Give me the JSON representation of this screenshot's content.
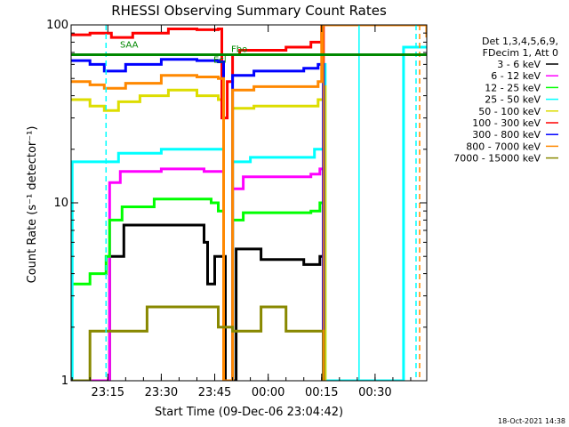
{
  "chart_data": {
    "type": "line",
    "title": "RHESSI Observing Summary Count Rates",
    "xlabel": "Start Time (09-Dec-06 23:04:42)",
    "ylabel": "Count Rate (s⁻¹ detector⁻¹)",
    "y_scale": "log",
    "ylim": [
      1,
      100
    ],
    "xlim": [
      "23:04:42",
      "00:44:30"
    ],
    "x_ticks": [
      "23:15",
      "23:30",
      "23:45",
      "00:00",
      "00:15",
      "00:30"
    ],
    "y_ticks": [
      "1",
      "10",
      "100"
    ],
    "legend": {
      "position": "right",
      "header": [
        "Det 1,3,4,5,6,9,",
        "FDecim 1, Att 0"
      ],
      "entries": [
        {
          "label": "3 - 6 keV",
          "color": "#000000"
        },
        {
          "label": "6 - 12 keV",
          "color": "#ff00ff"
        },
        {
          "label": "12 - 25 keV",
          "color": "#00ff00"
        },
        {
          "label": "25 - 50 keV",
          "color": "#00ffff"
        },
        {
          "label": "50 - 100 keV",
          "color": "#dddd00"
        },
        {
          "label": "100 - 300 keV",
          "color": "#ff0000"
        },
        {
          "label": "300 - 800 keV",
          "color": "#0000ff"
        },
        {
          "label": "800 - 7000 keV",
          "color": "#ff8800"
        },
        {
          "label": "7000 - 15000 keV",
          "color": "#888800"
        }
      ]
    },
    "flag_labels": [
      "SAA",
      "Ecl",
      "Fbo"
    ],
    "series": [
      {
        "name": "3 - 6 keV",
        "color": "#000000",
        "points": [
          [
            "23:04:42",
            0
          ],
          [
            "23:14:30",
            0
          ],
          [
            "23:15:30",
            5
          ],
          [
            "23:19:30",
            7.5
          ],
          [
            "23:42:00",
            6
          ],
          [
            "23:43:00",
            3.5
          ],
          [
            "23:45:00",
            5
          ],
          [
            "23:48:00",
            0
          ],
          [
            "23:51:00",
            5.5
          ],
          [
            "23:58:00",
            4.8
          ],
          [
            "00:10:00",
            4.5
          ],
          [
            "00:14:30",
            5
          ],
          [
            "00:15:30",
            0
          ]
        ]
      },
      {
        "name": "6 - 12 keV",
        "color": "#ff00ff",
        "points": [
          [
            "23:04:42",
            0
          ],
          [
            "23:14:30",
            0
          ],
          [
            "23:15:30",
            13
          ],
          [
            "23:18:30",
            15
          ],
          [
            "23:30:00",
            15.5
          ],
          [
            "23:42:00",
            15
          ],
          [
            "23:46:00",
            15
          ],
          [
            "23:47:30",
            0
          ],
          [
            "23:50:00",
            12
          ],
          [
            "23:53:00",
            14
          ],
          [
            "00:12:00",
            14.5
          ],
          [
            "00:14:30",
            15.5
          ],
          [
            "00:15:30",
            0
          ]
        ]
      },
      {
        "name": "12 - 25 keV",
        "color": "#00ff00",
        "points": [
          [
            "23:04:42",
            3.5
          ],
          [
            "23:10:00",
            4
          ],
          [
            "23:14:30",
            5
          ],
          [
            "23:15:30",
            8
          ],
          [
            "23:19:00",
            9.5
          ],
          [
            "23:28:00",
            10.5
          ],
          [
            "23:44:00",
            10
          ],
          [
            "23:46:00",
            9
          ],
          [
            "23:47:30",
            0
          ],
          [
            "23:50:00",
            8
          ],
          [
            "23:53:00",
            8.8
          ],
          [
            "00:12:00",
            9
          ],
          [
            "00:14:30",
            10
          ],
          [
            "00:15:30",
            0
          ]
        ]
      },
      {
        "name": "25 - 50 keV",
        "color": "#00ffff",
        "points": [
          [
            "23:04:42",
            0
          ],
          [
            "23:05:00",
            17
          ],
          [
            "23:10:00",
            17
          ],
          [
            "23:14:30",
            17
          ],
          [
            "23:18:00",
            19
          ],
          [
            "23:30:00",
            20
          ],
          [
            "23:46:00",
            20
          ],
          [
            "23:47:30",
            0
          ],
          [
            "23:50:00",
            17
          ],
          [
            "23:55:00",
            18
          ],
          [
            "00:10:00",
            18
          ],
          [
            "00:13:00",
            20
          ],
          [
            "00:15:30",
            60
          ],
          [
            "00:16:00",
            0
          ],
          [
            "00:38:00",
            75
          ],
          [
            "00:44:30",
            75
          ]
        ]
      },
      {
        "name": "50 - 100 keV",
        "color": "#dddd00",
        "points": [
          [
            "23:04:42",
            38
          ],
          [
            "23:10:00",
            35
          ],
          [
            "23:14:00",
            33
          ],
          [
            "23:18:00",
            37
          ],
          [
            "23:24:00",
            40
          ],
          [
            "23:32:00",
            43
          ],
          [
            "23:40:00",
            40
          ],
          [
            "23:46:00",
            38
          ],
          [
            "23:47:30",
            0
          ],
          [
            "23:50:00",
            34
          ],
          [
            "23:56:00",
            35
          ],
          [
            "00:10:00",
            35
          ],
          [
            "00:14:00",
            38
          ],
          [
            "00:15:30",
            45
          ],
          [
            "00:16:00",
            0
          ]
        ]
      },
      {
        "name": "100 - 300 keV",
        "color": "#ff0000",
        "points": [
          [
            "23:04:42",
            88
          ],
          [
            "23:10:00",
            90
          ],
          [
            "23:16:00",
            85
          ],
          [
            "23:22:00",
            90
          ],
          [
            "23:32:00",
            95
          ],
          [
            "23:40:00",
            94
          ],
          [
            "23:46:00",
            95
          ],
          [
            "23:47:00",
            30
          ],
          [
            "23:48:30",
            48
          ],
          [
            "23:50:00",
            68
          ],
          [
            "23:52:00",
            72
          ],
          [
            "00:05:00",
            75
          ],
          [
            "00:12:00",
            80
          ],
          [
            "00:15:00",
            100
          ],
          [
            "00:15:30",
            0
          ]
        ]
      },
      {
        "name": "300 - 800 keV",
        "color": "#0000ff",
        "points": [
          [
            "23:04:42",
            63
          ],
          [
            "23:10:00",
            60
          ],
          [
            "23:14:00",
            55
          ],
          [
            "23:20:00",
            60
          ],
          [
            "23:30:00",
            64
          ],
          [
            "23:40:00",
            63
          ],
          [
            "23:46:00",
            62
          ],
          [
            "23:47:30",
            0
          ],
          [
            "23:50:00",
            52
          ],
          [
            "23:56:00",
            55
          ],
          [
            "00:10:00",
            57
          ],
          [
            "00:14:00",
            60
          ],
          [
            "00:15:30",
            0
          ]
        ]
      },
      {
        "name": "800 - 7000 keV",
        "color": "#ff8800",
        "points": [
          [
            "23:04:42",
            48
          ],
          [
            "23:10:00",
            46
          ],
          [
            "23:14:00",
            44
          ],
          [
            "23:20:00",
            47
          ],
          [
            "23:30:00",
            52
          ],
          [
            "23:40:00",
            51
          ],
          [
            "23:46:00",
            50
          ],
          [
            "23:47:30",
            0
          ],
          [
            "23:50:00",
            43
          ],
          [
            "23:56:00",
            45
          ],
          [
            "00:10:00",
            45
          ],
          [
            "00:14:00",
            48
          ],
          [
            "00:15:00",
            100
          ],
          [
            "00:44:30",
            85
          ]
        ]
      },
      {
        "name": "7000 - 15000 keV",
        "color": "#888800",
        "points": [
          [
            "23:04:42",
            0
          ],
          [
            "23:10:00",
            1.9
          ],
          [
            "23:14:00",
            1.9
          ],
          [
            "23:20:00",
            1.9
          ],
          [
            "23:26:00",
            2.6
          ],
          [
            "23:40:00",
            2.6
          ],
          [
            "23:46:00",
            2
          ],
          [
            "23:50:00",
            1.9
          ],
          [
            "23:58:00",
            2.6
          ],
          [
            "00:05:00",
            1.9
          ],
          [
            "00:14:00",
            1.9
          ],
          [
            "00:15:30",
            0
          ]
        ]
      }
    ],
    "vertical_markers": [
      {
        "x": "23:14:30",
        "color": "#00ffff",
        "style": "dashed"
      },
      {
        "x": "00:15:30",
        "color": "#ff8800",
        "style": "solid"
      },
      {
        "x": "00:25:30",
        "color": "#00ffff",
        "style": "solid"
      },
      {
        "x": "00:41:30",
        "color": "#00ffff",
        "style": "dashed"
      },
      {
        "x": "00:42:30",
        "color": "#ff8800",
        "style": "dashed"
      }
    ],
    "flag_line": {
      "color": "#008800",
      "y": 68
    }
  },
  "footer": {
    "date_stamp": "18-Oct-2021 14:38"
  }
}
